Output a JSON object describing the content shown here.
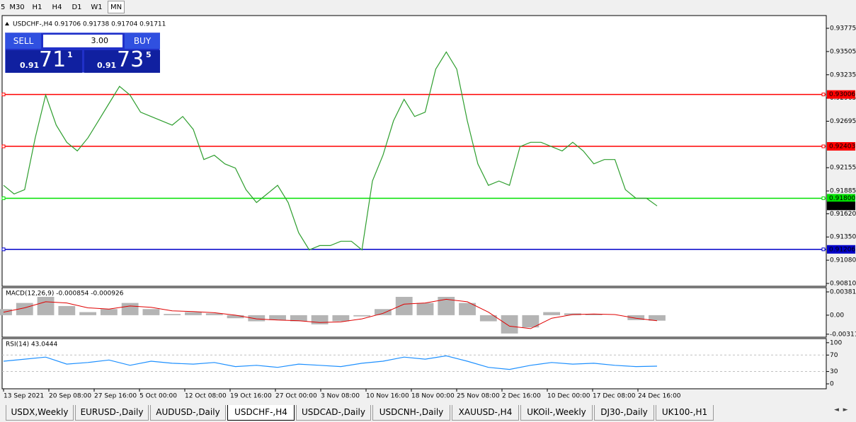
{
  "toolbar": {
    "timeframes": [
      "5",
      "M30",
      "H1",
      "H4",
      "D1",
      "W1",
      "MN"
    ],
    "active": "MN"
  },
  "trade_panel": {
    "sell": "SELL",
    "lots": "3.00",
    "buy": "BUY",
    "bid_big": "0.91",
    "bid_main": "71",
    "bid_small": "1",
    "ask_big": "0.91",
    "ask_main": "73",
    "ask_small": "5"
  },
  "chart_data": [
    {
      "type": "line",
      "title": "USDCHF-,H4  0.91706 0.91738 0.91704 0.91711",
      "color": "#2e9e2e",
      "values": [
        0.9195,
        0.9185,
        0.919,
        0.925,
        0.93,
        0.9265,
        0.9245,
        0.9235,
        0.925,
        0.927,
        0.929,
        0.931,
        0.93,
        0.928,
        0.9275,
        0.927,
        0.9265,
        0.9275,
        0.926,
        0.9225,
        0.923,
        0.922,
        0.9215,
        0.919,
        0.9175,
        0.9185,
        0.9195,
        0.9175,
        0.914,
        0.912,
        0.9125,
        0.9125,
        0.913,
        0.913,
        0.912,
        0.92,
        0.923,
        0.927,
        0.9295,
        0.9275,
        0.928,
        0.933,
        0.935,
        0.933,
        0.927,
        0.922,
        0.9195,
        0.92,
        0.9195,
        0.924,
        0.9245,
        0.9245,
        0.924,
        0.9235,
        0.9245,
        0.9235,
        0.922,
        0.9225,
        0.9225,
        0.919,
        0.918,
        0.918,
        0.91711
      ],
      "ylim": [
        0.90777,
        0.93923
      ],
      "yticks": [
        0.93775,
        0.93505,
        0.93235,
        0.92965,
        0.92695,
        0.92155,
        0.91885,
        {
          "value": 0.9162,
          "label": "0.91620"
        },
        {
          "value": 0.9135,
          "label": "0.91350"
        },
        {
          "value": 0.9108,
          "label": "0.91080"
        },
        {
          "value": 0.9081,
          "label": "0.90810"
        }
      ],
      "levels": [
        {
          "value": 0.93006,
          "color": "#ff0000"
        },
        {
          "value": 0.92403,
          "color": "#ff0000"
        },
        {
          "value": 0.918,
          "label": "0.91800",
          "color": "#00e000"
        },
        {
          "value": 0.91206,
          "color": "#0000c8"
        }
      ],
      "last_price": 0.91711,
      "date_labels": [
        "13 Sep 2021",
        "20 Sep 08:00",
        "27 Sep 16:00",
        "5 Oct 00:00",
        "12 Oct 08:00",
        "19 Oct 16:00",
        "27 Oct 00:00",
        "3 Nov 08:00",
        "10 Nov 16:00",
        "18 Nov 00:00",
        "25 Nov 08:00",
        "2 Dec 16:00",
        "10 Dec 00:00",
        "17 Dec 08:00",
        "24 Dec 16:00"
      ]
    },
    {
      "type": "bar",
      "title": "MACD(12,26,9) -0.000854 -0.000926",
      "color": "#b4b4b4",
      "signal_color": "#e00000",
      "values": [
        0.001,
        0.002,
        0.003,
        0.0015,
        0.0005,
        0.001,
        0.002,
        0.001,
        0.0002,
        0.0005,
        0.0003,
        -0.0005,
        -0.001,
        -0.0008,
        -0.001,
        -0.0015,
        -0.001,
        -0.0002,
        0.001,
        0.003,
        0.002,
        0.003,
        0.002,
        -0.001,
        -0.003,
        -0.002,
        0.0005,
        0.0003,
        0.0002,
        0,
        -0.0008,
        -0.0009
      ],
      "signal": [
        0.0005,
        0.0012,
        0.0022,
        0.002,
        0.0012,
        0.001,
        0.0015,
        0.0013,
        0.0007,
        0.0006,
        0.0004,
        0,
        -0.0006,
        -0.0008,
        -0.0009,
        -0.0012,
        -0.0011,
        -0.0006,
        0.0003,
        0.0018,
        0.002,
        0.0026,
        0.0022,
        0.0005,
        -0.0018,
        -0.0022,
        -0.0005,
        0.0001,
        0.0002,
        0.0001,
        -0.0005,
        -0.0009
      ],
      "ylim": [
        -0.0036,
        0.0045
      ],
      "yticks": [
        0.003811,
        {
          "value": 0,
          "label": "0.00"
        },
        -0.003115
      ]
    },
    {
      "type": "line",
      "title": "RSI(14) 43.0444",
      "color": "#1e90ff",
      "values": [
        55,
        60,
        65,
        48,
        52,
        58,
        45,
        55,
        50,
        48,
        52,
        42,
        45,
        40,
        48,
        45,
        42,
        50,
        55,
        65,
        60,
        68,
        55,
        40,
        35,
        45,
        52,
        48,
        50,
        45,
        42,
        43
      ],
      "ylim": [
        -12,
        110
      ],
      "yticks": [
        100,
        70,
        30,
        0
      ],
      "levels": [
        {
          "value": 70,
          "color": "#c0c0c0"
        },
        {
          "value": 30,
          "color": "#c0c0c0"
        }
      ]
    }
  ],
  "tabs": [
    "USDX,Weekly",
    "EURUSD-,Daily",
    "AUDUSD-,Daily",
    "USDCHF-,H4",
    "USDCAD-,Daily",
    "USDCNH-,Daily",
    "XAUUSD-,H4",
    "UKOil-,Weekly",
    "DJ30-,Daily",
    "UK100-,H1"
  ],
  "active_tab": "USDCHF-,H4"
}
